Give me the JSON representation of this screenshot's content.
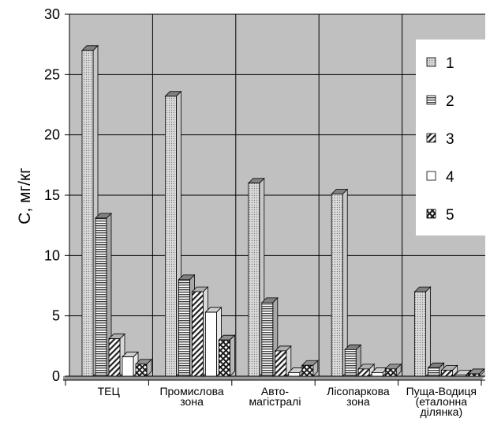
{
  "chart_data": {
    "type": "bar",
    "ylabel": "C, мг/кг",
    "ylim": [
      0,
      30
    ],
    "yticks": [
      0,
      5,
      10,
      15,
      20,
      25,
      30
    ],
    "grid": true,
    "legend_position": "top-right",
    "categories": [
      [
        "ТЕЦ"
      ],
      [
        "Промислова",
        "зона"
      ],
      [
        "Авто-",
        "магістралі"
      ],
      [
        "Лісопаркова",
        "зона"
      ],
      [
        "Пуща-Водиця",
        "(еталонна",
        "ділянка)"
      ]
    ],
    "series": [
      {
        "name": "1",
        "values": [
          27,
          23.2,
          16,
          15.1,
          7
        ],
        "pattern": "dots-light",
        "top_color": "#808080",
        "side_color": "#c8c8c8"
      },
      {
        "name": "2",
        "values": [
          13.1,
          8,
          6.1,
          2.2,
          0.7
        ],
        "pattern": "hstripes",
        "top_color": "#808080",
        "side_color": "#a8a8a8"
      },
      {
        "name": "3",
        "values": [
          3.1,
          7,
          2.1,
          0.6,
          0.5
        ],
        "pattern": "diagonal",
        "top_color": "#b0b0b0",
        "side_color": "#d8d8d8"
      },
      {
        "name": "4",
        "values": [
          1.6,
          5.3,
          0.3,
          0.3,
          0.1
        ],
        "pattern": "white",
        "top_color": "#cfcfcf",
        "side_color": "#e8e8e8"
      },
      {
        "name": "5",
        "values": [
          1,
          3,
          0.9,
          0.6,
          0.2
        ],
        "pattern": "crosshatch",
        "top_color": "#909090",
        "side_color": "#b8b8b8"
      }
    ]
  }
}
